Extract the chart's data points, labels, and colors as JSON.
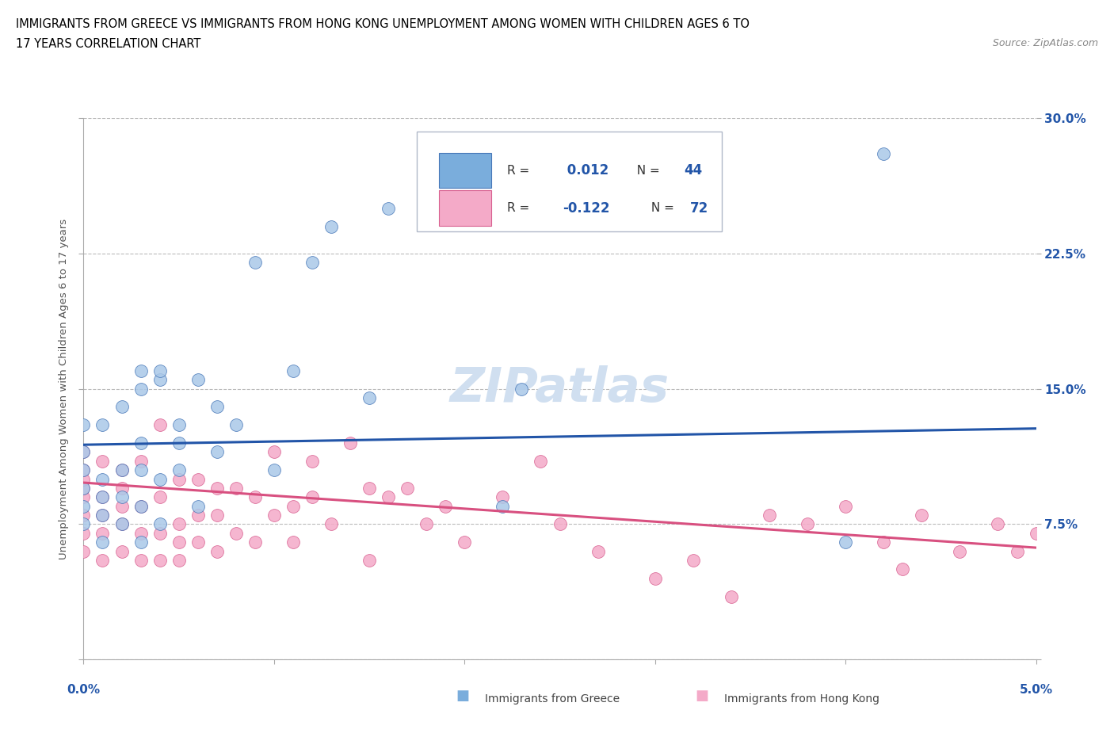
{
  "title_line1": "IMMIGRANTS FROM GREECE VS IMMIGRANTS FROM HONG KONG UNEMPLOYMENT AMONG WOMEN WITH CHILDREN AGES 6 TO",
  "title_line2": "17 YEARS CORRELATION CHART",
  "source_text": "Source: ZipAtlas.com",
  "ylabel": "Unemployment Among Women with Children Ages 6 to 17 years",
  "xlim": [
    0.0,
    0.05
  ],
  "ylim": [
    0.0,
    0.3
  ],
  "xticks": [
    0.0,
    0.01,
    0.02,
    0.03,
    0.04,
    0.05
  ],
  "yticks": [
    0.0,
    0.075,
    0.15,
    0.225,
    0.3
  ],
  "yticklabels_right": [
    "",
    "7.5%",
    "15.0%",
    "22.5%",
    "30.0%"
  ],
  "greece_R": 0.012,
  "greece_N": 44,
  "hk_R": -0.122,
  "hk_N": 72,
  "greece_color": "#aac8e8",
  "hk_color": "#f4aac8",
  "greece_edge_color": "#4878b8",
  "hk_edge_color": "#d86090",
  "greece_line_color": "#2255a8",
  "hk_line_color": "#d85080",
  "greece_line_y0": 0.119,
  "greece_line_y1": 0.128,
  "hk_line_y0": 0.098,
  "hk_line_y1": 0.062,
  "legend_blue": "#7aaddc",
  "legend_pink": "#f4aac8",
  "legend_blue_edge": "#4878b8",
  "legend_pink_edge": "#d86090",
  "watermark_color": "#d0dff0",
  "background_color": "#ffffff",
  "grid_color": "#bbbbbb",
  "greece_x": [
    0.0,
    0.0,
    0.0,
    0.0,
    0.0,
    0.0,
    0.001,
    0.001,
    0.001,
    0.001,
    0.001,
    0.002,
    0.002,
    0.002,
    0.002,
    0.003,
    0.003,
    0.003,
    0.003,
    0.003,
    0.004,
    0.004,
    0.004,
    0.005,
    0.005,
    0.006,
    0.006,
    0.007,
    0.007,
    0.008,
    0.009,
    0.01,
    0.011,
    0.012,
    0.013,
    0.015,
    0.016,
    0.022,
    0.023,
    0.04,
    0.042,
    0.004,
    0.005,
    0.003
  ],
  "greece_y": [
    0.075,
    0.085,
    0.095,
    0.105,
    0.115,
    0.13,
    0.065,
    0.08,
    0.09,
    0.1,
    0.13,
    0.075,
    0.09,
    0.105,
    0.14,
    0.065,
    0.085,
    0.105,
    0.12,
    0.16,
    0.075,
    0.1,
    0.155,
    0.105,
    0.13,
    0.085,
    0.155,
    0.115,
    0.14,
    0.13,
    0.22,
    0.105,
    0.16,
    0.22,
    0.24,
    0.145,
    0.25,
    0.085,
    0.15,
    0.065,
    0.28,
    0.16,
    0.12,
    0.15
  ],
  "hk_x": [
    0.0,
    0.0,
    0.0,
    0.0,
    0.0,
    0.0,
    0.0,
    0.0,
    0.001,
    0.001,
    0.001,
    0.001,
    0.001,
    0.002,
    0.002,
    0.002,
    0.002,
    0.002,
    0.003,
    0.003,
    0.003,
    0.003,
    0.004,
    0.004,
    0.004,
    0.004,
    0.005,
    0.005,
    0.005,
    0.005,
    0.006,
    0.006,
    0.006,
    0.007,
    0.007,
    0.007,
    0.008,
    0.008,
    0.009,
    0.009,
    0.01,
    0.01,
    0.011,
    0.011,
    0.012,
    0.012,
    0.013,
    0.014,
    0.015,
    0.015,
    0.016,
    0.017,
    0.018,
    0.019,
    0.02,
    0.022,
    0.024,
    0.025,
    0.027,
    0.03,
    0.032,
    0.034,
    0.036,
    0.038,
    0.04,
    0.042,
    0.043,
    0.044,
    0.046,
    0.048,
    0.049,
    0.05
  ],
  "hk_y": [
    0.06,
    0.07,
    0.08,
    0.09,
    0.095,
    0.1,
    0.105,
    0.115,
    0.055,
    0.07,
    0.08,
    0.09,
    0.11,
    0.06,
    0.075,
    0.085,
    0.095,
    0.105,
    0.055,
    0.07,
    0.085,
    0.11,
    0.055,
    0.07,
    0.09,
    0.13,
    0.055,
    0.065,
    0.075,
    0.1,
    0.065,
    0.08,
    0.1,
    0.06,
    0.08,
    0.095,
    0.07,
    0.095,
    0.065,
    0.09,
    0.08,
    0.115,
    0.065,
    0.085,
    0.09,
    0.11,
    0.075,
    0.12,
    0.055,
    0.095,
    0.09,
    0.095,
    0.075,
    0.085,
    0.065,
    0.09,
    0.11,
    0.075,
    0.06,
    0.045,
    0.055,
    0.035,
    0.08,
    0.075,
    0.085,
    0.065,
    0.05,
    0.08,
    0.06,
    0.075,
    0.06,
    0.07
  ]
}
